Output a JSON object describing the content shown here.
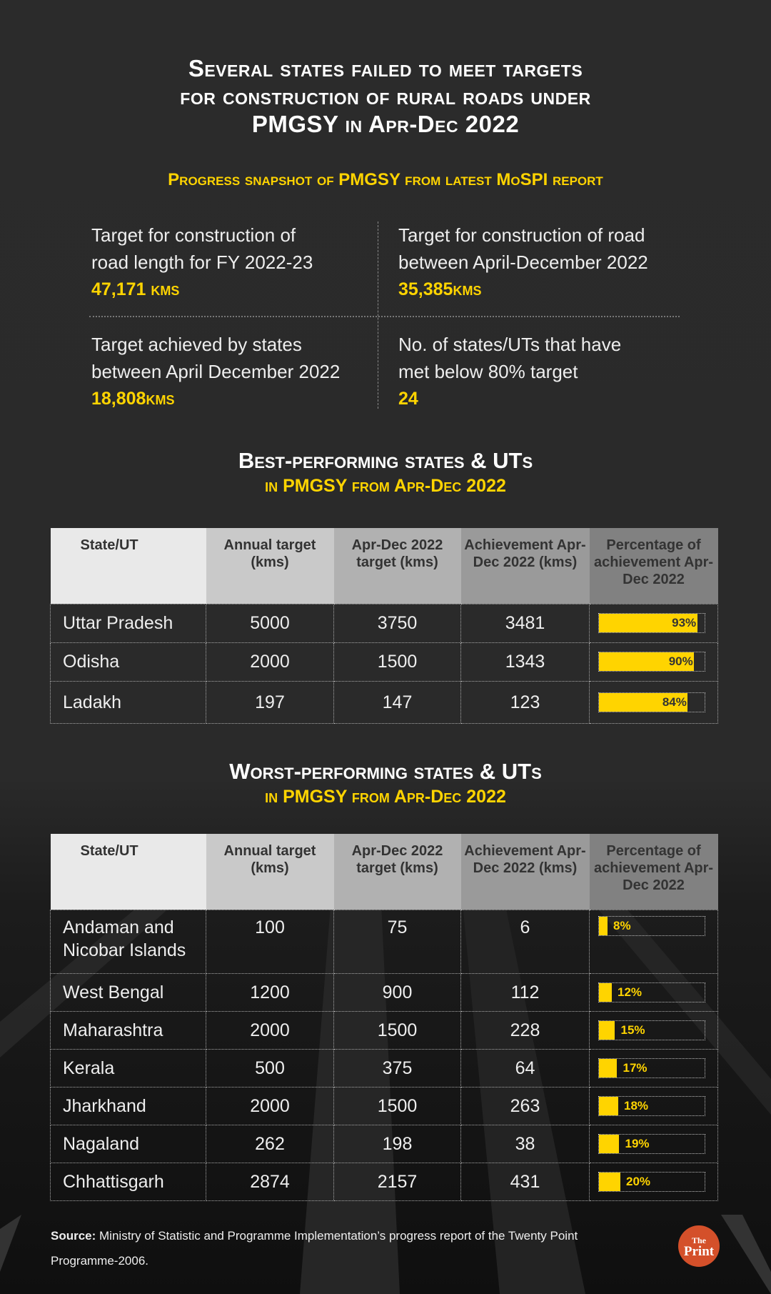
{
  "title": [
    "Several states failed to meet targets",
    "for construction of rural roads under",
    "PMGSY in Apr-Dec 2022"
  ],
  "subtitle": "Progress snapshot of PMGSY from latest MoSPI report",
  "snapshot": [
    {
      "label1": "Target for construction of",
      "label2": "road length for FY 2022-23",
      "value": "47,171 kms"
    },
    {
      "label1": "Target for construction of road",
      "label2": "between April-December 2022",
      "value": "35,385kms"
    },
    {
      "label1": "Target achieved by states",
      "label2": "between April December 2022",
      "value": "18,808kms"
    },
    {
      "label1": "No. of states/UTs that have",
      "label2": "met below 80% target",
      "value": "24"
    }
  ],
  "colors": {
    "background": "#2a2a2a",
    "accent": "#ffd400",
    "logo": "#d4502a"
  },
  "chart_data": [
    {
      "type": "table",
      "title": "Best-performing states & UTs",
      "subtitle": "in PMGSY from Apr-Dec 2022",
      "columns": [
        "State/UT",
        "Annual target (kms)",
        "Apr-Dec 2022 target (kms)",
        "Achievement Apr-Dec 2022 (kms)",
        "Percentage of achievement Apr-Dec 2022"
      ],
      "rows": [
        [
          "Uttar Pradesh",
          "5000",
          "3750",
          "3481",
          93
        ],
        [
          "Odisha",
          "2000",
          "1500",
          "1343",
          90
        ],
        [
          "Ladakh",
          "197",
          "147",
          "123",
          84
        ]
      ]
    },
    {
      "type": "table",
      "title": "Worst-performing states & UTs",
      "subtitle": "in PMGSY from Apr-Dec 2022",
      "columns": [
        "State/UT",
        "Annual target (kms)",
        "Apr-Dec 2022 target (kms)",
        "Achievement Apr-Dec 2022 (kms)",
        "Percentage of achievement Apr-Dec 2022"
      ],
      "rows": [
        [
          "Andaman and Nicobar Islands",
          "100",
          "75",
          "6",
          8
        ],
        [
          "West Bengal",
          "1200",
          "900",
          "112",
          12
        ],
        [
          "Maharashtra",
          "2000",
          "1500",
          "228",
          15
        ],
        [
          "Kerala",
          "500",
          "375",
          "64",
          17
        ],
        [
          "Jharkhand",
          "2000",
          "1500",
          "263",
          18
        ],
        [
          "Nagaland",
          "262",
          "198",
          "38",
          19
        ],
        [
          "Chhattisgarh",
          "2874",
          "2157",
          "431",
          20
        ]
      ]
    }
  ],
  "source": {
    "label": "Source:",
    "text": " Ministry of Statistic and Programme Implementation’s progress report of the Twenty Point Programme-2006."
  },
  "logo": {
    "line1": "The",
    "line2": "Print"
  }
}
